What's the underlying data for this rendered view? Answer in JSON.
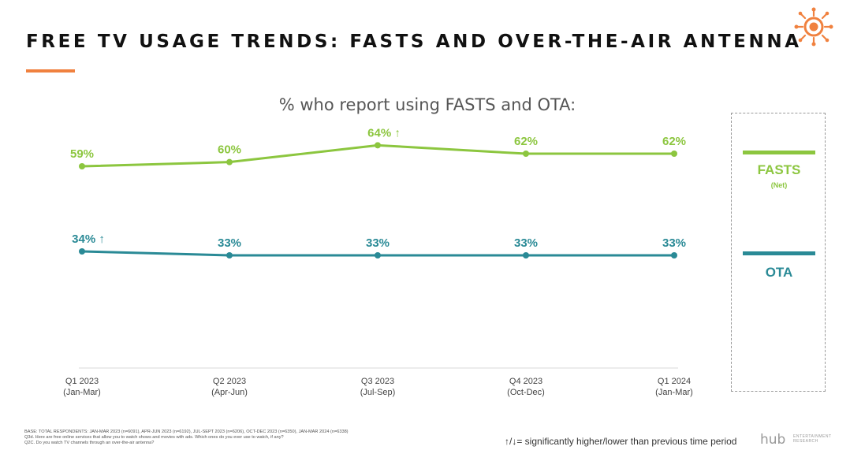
{
  "header": {
    "title": "FREE TV USAGE TRENDS: FASTS AND OVER-THE-AIR ANTENNA"
  },
  "colors": {
    "accent": "#f0813f",
    "fasts": "#8cc63f",
    "ota": "#2a8a96"
  },
  "chart_data": {
    "type": "line",
    "title": "% who report using FASTS and OTA:",
    "categories": [
      [
        "Q1 2023",
        "(Jan-Mar)"
      ],
      [
        "Q2 2023",
        "(Apr-Jun)"
      ],
      [
        "Q3 2023",
        "(Jul-Sep)"
      ],
      [
        "Q4 2023",
        "(Oct-Dec)"
      ],
      [
        "Q1 2024",
        "(Jan-Mar)"
      ]
    ],
    "series": [
      {
        "name": "FASTS",
        "sub": "(Net)",
        "values": [
          59,
          60,
          64,
          62,
          62
        ],
        "labels": [
          "59%",
          "60%",
          "64% ↑",
          "62%",
          "62%"
        ],
        "color": "#8cc63f"
      },
      {
        "name": "OTA",
        "values": [
          34,
          33,
          33,
          33,
          33
        ],
        "labels": [
          "34% ↑",
          "33%",
          "33%",
          "33%",
          "33%"
        ],
        "color": "#2a8a96"
      }
    ],
    "grid": false,
    "legend": "right"
  },
  "footnotes": [
    "BASE: TOTAL RESPONDENTS: JAN-MAR 2023 (n=6091), APR-JUN 2023 (n=6192), JUL-SEPT 2023 (n=6206), OCT-DEC 2023 (n=6350), JAN-MAR 2024 (n=6338)",
    "Q3d. Here are free online services that allow you to watch shows and movies with ads. Which ones do you ever use to watch, if any?",
    "Q2C. Do you watch TV channels through an over-the-air antenna?"
  ],
  "significance_note": "↑/↓= significantly higher/lower than previous time period",
  "brand": {
    "name": "hub",
    "sub_line1": "ENTERTAINMENT",
    "sub_line2": "RESEARCH",
    "logo_icon": "sun-target-icon"
  }
}
